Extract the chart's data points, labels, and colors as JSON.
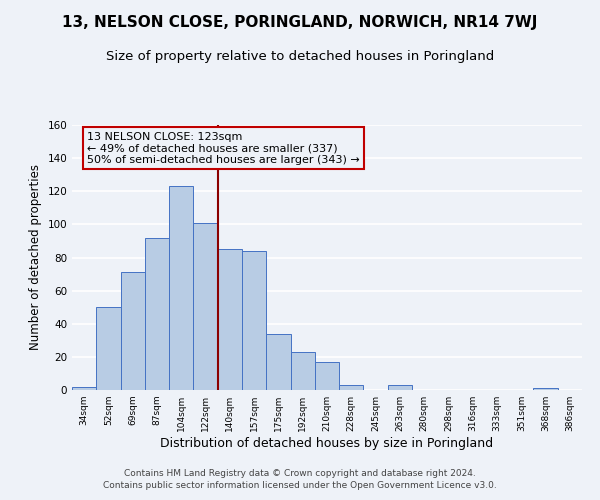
{
  "title": "13, NELSON CLOSE, PORINGLAND, NORWICH, NR14 7WJ",
  "subtitle": "Size of property relative to detached houses in Poringland",
  "xlabel": "Distribution of detached houses by size in Poringland",
  "ylabel": "Number of detached properties",
  "bin_labels": [
    "34sqm",
    "52sqm",
    "69sqm",
    "87sqm",
    "104sqm",
    "122sqm",
    "140sqm",
    "157sqm",
    "175sqm",
    "192sqm",
    "210sqm",
    "228sqm",
    "245sqm",
    "263sqm",
    "280sqm",
    "298sqm",
    "316sqm",
    "333sqm",
    "351sqm",
    "368sqm",
    "386sqm"
  ],
  "bin_values": [
    2,
    50,
    71,
    92,
    123,
    101,
    85,
    84,
    34,
    23,
    17,
    3,
    0,
    3,
    0,
    0,
    0,
    0,
    0,
    1,
    0
  ],
  "bar_color": "#b8cce4",
  "bar_edge_color": "#4472c4",
  "vline_x_index": 5,
  "vline_color": "#8b0000",
  "annotation_text": "13 NELSON CLOSE: 123sqm\n← 49% of detached houses are smaller (337)\n50% of semi-detached houses are larger (343) →",
  "annotation_box_edge": "#c00000",
  "annotation_fontsize": 8,
  "ylim": [
    0,
    160
  ],
  "yticks": [
    0,
    20,
    40,
    60,
    80,
    100,
    120,
    140,
    160
  ],
  "footer": "Contains HM Land Registry data © Crown copyright and database right 2024.\nContains public sector information licensed under the Open Government Licence v3.0.",
  "background_color": "#eef2f8",
  "grid_color": "#ffffff",
  "title_fontsize": 11,
  "subtitle_fontsize": 9.5,
  "xlabel_fontsize": 9,
  "ylabel_fontsize": 8.5,
  "footer_fontsize": 6.5
}
